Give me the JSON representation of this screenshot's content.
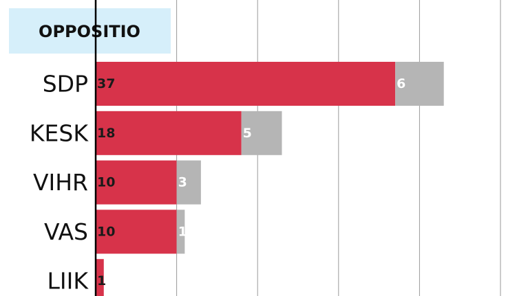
{
  "chart_data": {
    "type": "stacked-bar-horizontal",
    "title": "OPPOSITIO",
    "categories": [
      "SDP",
      "KESK",
      "VIHR",
      "VAS",
      "LIIK"
    ],
    "series": [
      {
        "color": "#d7334a",
        "values": [
          37,
          18,
          10,
          10,
          1
        ]
      },
      {
        "color": "#b5b5b5",
        "values": [
          6,
          5,
          3,
          1,
          null
        ]
      }
    ],
    "xlim": [
      0,
      53.4
    ],
    "xticks": [
      0,
      10,
      20,
      30,
      40,
      50
    ],
    "grid": true
  }
}
